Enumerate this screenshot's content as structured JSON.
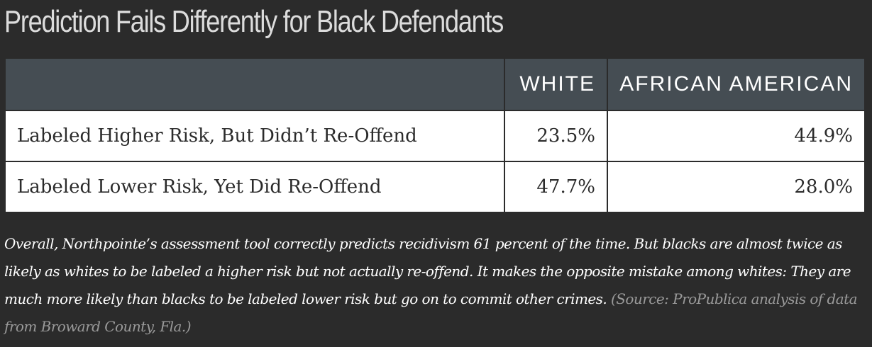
{
  "chart_data": {
    "type": "table",
    "title": "Prediction Fails Differently for Black Defendants",
    "columns": [
      "",
      "WHITE",
      "AFRICAN AMERICAN"
    ],
    "rows": [
      {
        "label": "Labeled Higher Risk, But Didn’t Re-Offend",
        "white": "23.5%",
        "african_american": "44.9%"
      },
      {
        "label": "Labeled Lower Risk, Yet Did Re-Offend",
        "white": "47.7%",
        "african_american": "28.0%"
      }
    ],
    "values": {
      "white": [
        23.5,
        47.7
      ],
      "african_american": [
        44.9,
        28.0
      ]
    },
    "note": "Overall, Northpointe’s assessment tool correctly predicts recidivism 61 percent of the time. But blacks are almost twice as likely as whites to be labeled a higher risk but not actually re-offend. It makes the opposite mistake among whites: They are much more likely than blacks to be labeled lower risk but go on to commit other crimes.",
    "source": "(Source: ProPublica analysis of data from Broward County, Fla.)"
  },
  "colors": {
    "background": "#2b2b2b",
    "header_background": "#454d53",
    "header_text": "#ffffff",
    "cell_background": "#ffffff",
    "cell_text": "#2b2b2b",
    "title_text": "#dcdcdc",
    "source_text": "#9a9a9a"
  }
}
